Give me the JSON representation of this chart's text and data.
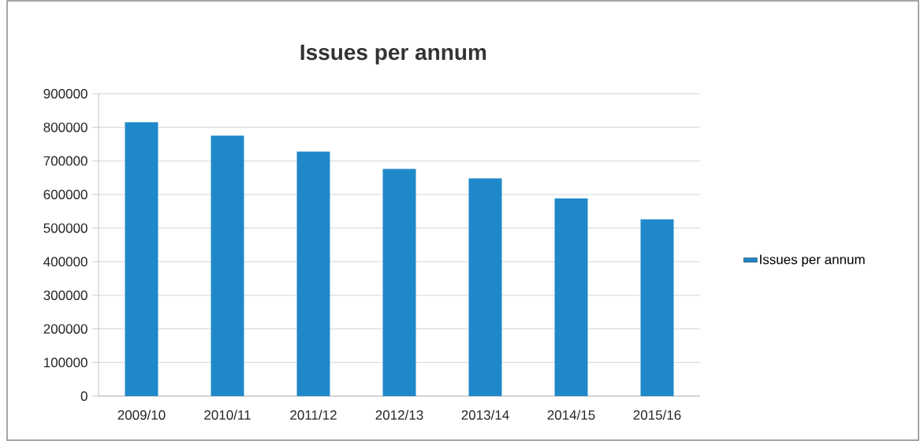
{
  "chart_data": {
    "type": "bar",
    "title": "Issues per annum",
    "categories": [
      "2009/10",
      "2010/11",
      "2011/12",
      "2012/13",
      "2013/14",
      "2014/15",
      "2015/16"
    ],
    "series": [
      {
        "name": "Issues per annum",
        "color": "#1f88c9",
        "values": [
          815000,
          775000,
          728000,
          676000,
          648000,
          588000,
          526000
        ]
      }
    ],
    "ylim": [
      0,
      900000
    ],
    "yticks": [
      0,
      100000,
      200000,
      300000,
      400000,
      500000,
      600000,
      700000,
      800000,
      900000
    ],
    "grid": "y",
    "legend": "right"
  }
}
